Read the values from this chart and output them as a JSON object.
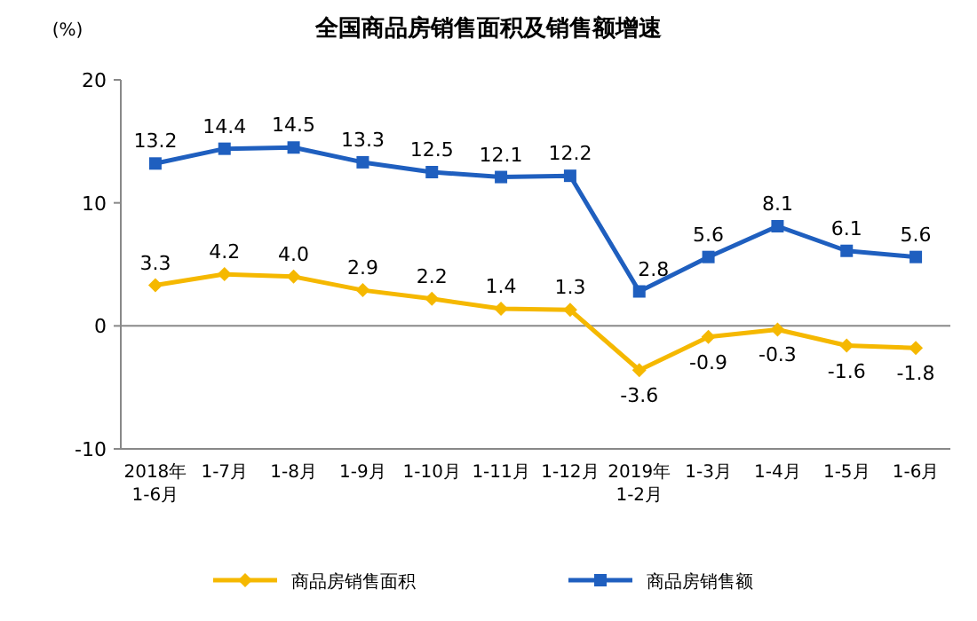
{
  "chart_data": {
    "type": "line",
    "title": "全国商品房销售面积及销售额增速",
    "ylabel": "(%)",
    "categories": [
      "2018年\n1-6月",
      "1-7月",
      "1-8月",
      "1-9月",
      "1-10月",
      "1-11月",
      "1-12月",
      "2019年\n1-2月",
      "1-3月",
      "1-4月",
      "1-5月",
      "1-6月"
    ],
    "series": [
      {
        "name": "商品房销售面积",
        "color": "#f5b800",
        "marker": "diamond",
        "values": [
          3.3,
          4.2,
          4.0,
          2.9,
          2.2,
          1.4,
          1.3,
          -3.6,
          -0.9,
          -0.3,
          -1.6,
          -1.8
        ],
        "value_labels": [
          "3.3",
          "4.2",
          "4.0",
          "2.9",
          "2.2",
          "1.4",
          "1.3",
          "-3.6",
          "-0.9",
          "-0.3",
          "-1.6",
          "-1.8"
        ]
      },
      {
        "name": "商品房销售额",
        "color": "#1f5fbf",
        "marker": "square",
        "values": [
          13.2,
          14.4,
          14.5,
          13.3,
          12.5,
          12.1,
          12.2,
          2.8,
          5.6,
          8.1,
          6.1,
          5.6
        ],
        "value_labels": [
          "13.2",
          "14.4",
          "14.5",
          "13.3",
          "12.5",
          "12.1",
          "12.2",
          "2.8",
          "5.6",
          "8.1",
          "6.1",
          "5.6"
        ]
      }
    ],
    "ylim": [
      -10,
      20
    ],
    "yticks": [
      -10,
      0,
      10,
      20
    ],
    "legend": "bottom"
  }
}
